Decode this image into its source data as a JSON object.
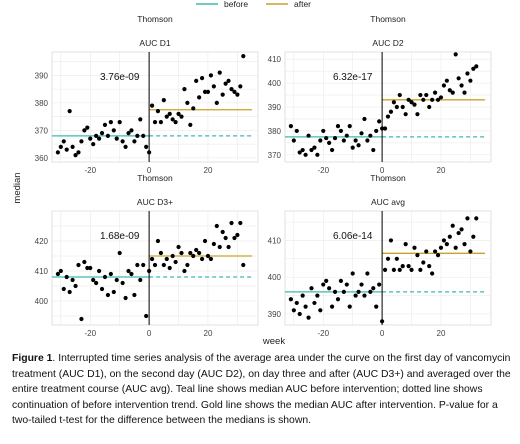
{
  "legend": {
    "items": [
      {
        "label": "before",
        "color": "#3fb8b0"
      },
      {
        "label": "after",
        "color": "#c9a227"
      }
    ]
  },
  "shared_axes": {
    "xlabel": "week",
    "ylabel": "median"
  },
  "caption": {
    "label": "Figure 1",
    "text": ". Interrupted time series analysis of the average area under the curve on the first day of vancomycin treatment (AUC D1), on the second day (AUC D2), on day three and after (AUC D3+) and averaged over the entire treatment course (AUC avg). Teal line shows median AUC before intervention; dotted line shows continuation of before intervention trend. Gold line shows the median AUC after intervention. P-value for a two-tailed t-test for the difference between the medians is shown."
  },
  "colors": {
    "before": "#3fb8b0",
    "after": "#c9a227",
    "intervention_line": "#000000",
    "grid": "#e6e6e6",
    "points": "#000000"
  },
  "chart_data": [
    {
      "type": "scatter",
      "strip_label": "Thomson",
      "title": "AUC D1",
      "annotation": "3.76e-09",
      "xlim": [
        -33,
        37
      ],
      "ylim": [
        358.5,
        398.5
      ],
      "xticks": [
        -20,
        0,
        20
      ],
      "yticks": [
        360,
        370,
        380,
        390
      ],
      "grid": true,
      "intervention_x": 0,
      "before_median": 368.0,
      "after_median": 377.5,
      "points": [
        [
          -31,
          362
        ],
        [
          -30,
          364
        ],
        [
          -29,
          366
        ],
        [
          -28,
          363
        ],
        [
          -27,
          377
        ],
        [
          -26,
          364
        ],
        [
          -25,
          361
        ],
        [
          -24,
          362
        ],
        [
          -23,
          366
        ],
        [
          -22,
          370
        ],
        [
          -21,
          371
        ],
        [
          -20,
          367
        ],
        [
          -19,
          365
        ],
        [
          -18,
          368
        ],
        [
          -17,
          367
        ],
        [
          -16,
          369
        ],
        [
          -15,
          372
        ],
        [
          -14,
          368
        ],
        [
          -13,
          373
        ],
        [
          -12,
          370
        ],
        [
          -11,
          367
        ],
        [
          -10,
          373
        ],
        [
          -9,
          366
        ],
        [
          -8,
          364
        ],
        [
          -7,
          369
        ],
        [
          -6,
          370
        ],
        [
          -5,
          366
        ],
        [
          -4,
          368
        ],
        [
          -3,
          374
        ],
        [
          -2,
          368
        ],
        [
          -1,
          364
        ],
        [
          0,
          362
        ],
        [
          1,
          379
        ],
        [
          2,
          373
        ],
        [
          3,
          377
        ],
        [
          4,
          373
        ],
        [
          5,
          381
        ],
        [
          6,
          375
        ],
        [
          7,
          376
        ],
        [
          8,
          374
        ],
        [
          9,
          373
        ],
        [
          10,
          376
        ],
        [
          11,
          375
        ],
        [
          12,
          385
        ],
        [
          13,
          380
        ],
        [
          14,
          372
        ],
        [
          15,
          378
        ],
        [
          16,
          388
        ],
        [
          17,
          382
        ],
        [
          18,
          389
        ],
        [
          19,
          384
        ],
        [
          20,
          384
        ],
        [
          21,
          390
        ],
        [
          22,
          386
        ],
        [
          23,
          380
        ],
        [
          24,
          391
        ],
        [
          25,
          383
        ],
        [
          26,
          387
        ],
        [
          27,
          388
        ],
        [
          28,
          385
        ],
        [
          29,
          384
        ],
        [
          30,
          383
        ],
        [
          31,
          386
        ],
        [
          32,
          397
        ]
      ]
    },
    {
      "type": "scatter",
      "strip_label": "Thomson",
      "title": "AUC D2",
      "annotation": "6.32e-17",
      "xlim": [
        -33,
        37
      ],
      "ylim": [
        367,
        413
      ],
      "xticks": [
        -20,
        0,
        20
      ],
      "yticks": [
        370,
        380,
        390,
        400,
        410
      ],
      "grid": true,
      "intervention_x": 0,
      "before_median": 377.5,
      "after_median": 393.0,
      "points": [
        [
          -31,
          382
        ],
        [
          -30,
          376
        ],
        [
          -29,
          380
        ],
        [
          -28,
          371
        ],
        [
          -27,
          372
        ],
        [
          -26,
          370
        ],
        [
          -25,
          378
        ],
        [
          -24,
          372
        ],
        [
          -23,
          373
        ],
        [
          -22,
          370
        ],
        [
          -21,
          376
        ],
        [
          -20,
          380
        ],
        [
          -19,
          377
        ],
        [
          -18,
          375
        ],
        [
          -17,
          372
        ],
        [
          -16,
          377
        ],
        [
          -15,
          382
        ],
        [
          -14,
          380
        ],
        [
          -13,
          376
        ],
        [
          -12,
          378
        ],
        [
          -11,
          382
        ],
        [
          -10,
          373
        ],
        [
          -9,
          376
        ],
        [
          -8,
          374
        ],
        [
          -7,
          379
        ],
        [
          -6,
          385
        ],
        [
          -5,
          376
        ],
        [
          -4,
          378
        ],
        [
          -3,
          372
        ],
        [
          -2,
          380
        ],
        [
          -1,
          384
        ],
        [
          0,
          381
        ],
        [
          1,
          381
        ],
        [
          2,
          386
        ],
        [
          3,
          388
        ],
        [
          4,
          392
        ],
        [
          5,
          390
        ],
        [
          6,
          395
        ],
        [
          7,
          390
        ],
        [
          8,
          387
        ],
        [
          9,
          393
        ],
        [
          10,
          392
        ],
        [
          11,
          391
        ],
        [
          12,
          387
        ],
        [
          13,
          395
        ],
        [
          14,
          393
        ],
        [
          15,
          395
        ],
        [
          16,
          390
        ],
        [
          17,
          393
        ],
        [
          18,
          396
        ],
        [
          19,
          393
        ],
        [
          20,
          394
        ],
        [
          21,
          399
        ],
        [
          22,
          401
        ],
        [
          23,
          397
        ],
        [
          24,
          396
        ],
        [
          25,
          412
        ],
        [
          26,
          402
        ],
        [
          27,
          399
        ],
        [
          28,
          396
        ],
        [
          29,
          404
        ],
        [
          30,
          401
        ],
        [
          31,
          406
        ],
        [
          32,
          407
        ]
      ]
    },
    {
      "type": "scatter",
      "strip_label": "Thomson",
      "title": "AUC D3+",
      "annotation": "1.68e-09",
      "xlim": [
        -33,
        37
      ],
      "ylim": [
        392,
        430
      ],
      "xticks": [
        -20,
        0,
        20
      ],
      "yticks": [
        400,
        410,
        420
      ],
      "grid": true,
      "intervention_x": 0,
      "before_median": 408.0,
      "after_median": 415.0,
      "points": [
        [
          -31,
          409
        ],
        [
          -30,
          410
        ],
        [
          -29,
          404
        ],
        [
          -28,
          408
        ],
        [
          -27,
          403
        ],
        [
          -26,
          407
        ],
        [
          -25,
          405
        ],
        [
          -24,
          412
        ],
        [
          -23,
          394
        ],
        [
          -22,
          413
        ],
        [
          -21,
          411
        ],
        [
          -20,
          411
        ],
        [
          -19,
          407
        ],
        [
          -18,
          406
        ],
        [
          -17,
          410
        ],
        [
          -16,
          404
        ],
        [
          -15,
          408
        ],
        [
          -14,
          402
        ],
        [
          -13,
          409
        ],
        [
          -12,
          403
        ],
        [
          -11,
          407
        ],
        [
          -10,
          416
        ],
        [
          -9,
          406
        ],
        [
          -8,
          401
        ],
        [
          -7,
          410
        ],
        [
          -6,
          409
        ],
        [
          -5,
          402
        ],
        [
          -4,
          412
        ],
        [
          -3,
          407
        ],
        [
          -2,
          412
        ],
        [
          -1,
          395
        ],
        [
          0,
          410
        ],
        [
          1,
          414
        ],
        [
          2,
          412
        ],
        [
          3,
          420
        ],
        [
          4,
          416
        ],
        [
          5,
          412
        ],
        [
          6,
          414
        ],
        [
          7,
          411
        ],
        [
          8,
          415
        ],
        [
          9,
          413
        ],
        [
          10,
          418
        ],
        [
          11,
          416
        ],
        [
          12,
          410
        ],
        [
          13,
          412
        ],
        [
          14,
          416
        ],
        [
          15,
          415
        ],
        [
          16,
          417
        ],
        [
          17,
          416
        ],
        [
          18,
          414
        ],
        [
          19,
          420
        ],
        [
          20,
          415
        ],
        [
          21,
          414
        ],
        [
          22,
          419
        ],
        [
          23,
          425
        ],
        [
          24,
          418
        ],
        [
          25,
          423
        ],
        [
          26,
          421
        ],
        [
          27,
          418
        ],
        [
          28,
          426
        ],
        [
          29,
          421
        ],
        [
          30,
          422
        ],
        [
          31,
          426
        ],
        [
          32,
          412
        ]
      ]
    },
    {
      "type": "scatter",
      "strip_label": "Thomson",
      "title": "AUC avg",
      "annotation": "6.06e-14",
      "xlim": [
        -33,
        37
      ],
      "ylim": [
        387,
        418
      ],
      "xticks": [
        -20,
        0,
        20
      ],
      "yticks": [
        390,
        400,
        410
      ],
      "grid": true,
      "intervention_x": 0,
      "before_median": 396.0,
      "after_median": 406.5,
      "points": [
        [
          -31,
          394
        ],
        [
          -30,
          391
        ],
        [
          -29,
          393
        ],
        [
          -28,
          390
        ],
        [
          -27,
          395
        ],
        [
          -26,
          392
        ],
        [
          -25,
          389
        ],
        [
          -24,
          397
        ],
        [
          -23,
          393
        ],
        [
          -22,
          395
        ],
        [
          -21,
          391
        ],
        [
          -20,
          398
        ],
        [
          -19,
          399
        ],
        [
          -18,
          397
        ],
        [
          -17,
          392
        ],
        [
          -16,
          396
        ],
        [
          -15,
          394
        ],
        [
          -14,
          399
        ],
        [
          -13,
          396
        ],
        [
          -12,
          398
        ],
        [
          -11,
          392
        ],
        [
          -10,
          401
        ],
        [
          -9,
          395
        ],
        [
          -8,
          396
        ],
        [
          -7,
          398
        ],
        [
          -6,
          395
        ],
        [
          -5,
          401
        ],
        [
          -4,
          396
        ],
        [
          -3,
          397
        ],
        [
          -2,
          392
        ],
        [
          -1,
          398
        ],
        [
          0,
          388
        ],
        [
          1,
          402
        ],
        [
          2,
          405
        ],
        [
          3,
          410
        ],
        [
          4,
          402
        ],
        [
          5,
          405
        ],
        [
          6,
          402
        ],
        [
          7,
          403
        ],
        [
          8,
          409
        ],
        [
          9,
          403
        ],
        [
          10,
          402
        ],
        [
          11,
          408
        ],
        [
          12,
          406
        ],
        [
          13,
          402
        ],
        [
          14,
          404
        ],
        [
          15,
          407
        ],
        [
          16,
          403
        ],
        [
          17,
          401
        ],
        [
          18,
          407
        ],
        [
          19,
          406
        ],
        [
          20,
          408
        ],
        [
          21,
          410
        ],
        [
          22,
          409
        ],
        [
          23,
          411
        ],
        [
          24,
          414
        ],
        [
          25,
          408
        ],
        [
          26,
          412
        ],
        [
          27,
          413
        ],
        [
          28,
          409
        ],
        [
          29,
          416
        ],
        [
          30,
          407
        ],
        [
          31,
          411
        ],
        [
          32,
          416
        ]
      ]
    }
  ]
}
